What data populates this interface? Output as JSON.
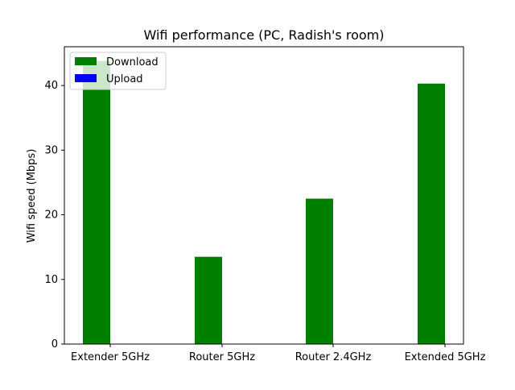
{
  "chart_data": {
    "type": "bar",
    "title": "Wifi performance (PC, Radish's room)",
    "xlabel": "",
    "ylabel": "Wifi speed (Mbps)",
    "categories": [
      "Extender 5GHz",
      "Router 5GHz",
      "Router 2.4GHz",
      "Extended 5GHz"
    ],
    "series": [
      {
        "name": "Download",
        "color": "#008000",
        "values": [
          43.8,
          13.5,
          22.5,
          40.3
        ]
      },
      {
        "name": "Upload",
        "color": "#0000ff",
        "values": [
          0,
          0,
          0,
          0
        ]
      }
    ],
    "ylim": [
      0,
      46
    ],
    "yticks": [
      0,
      10,
      20,
      30,
      40
    ],
    "grid": false,
    "legend_position": "top-left"
  }
}
